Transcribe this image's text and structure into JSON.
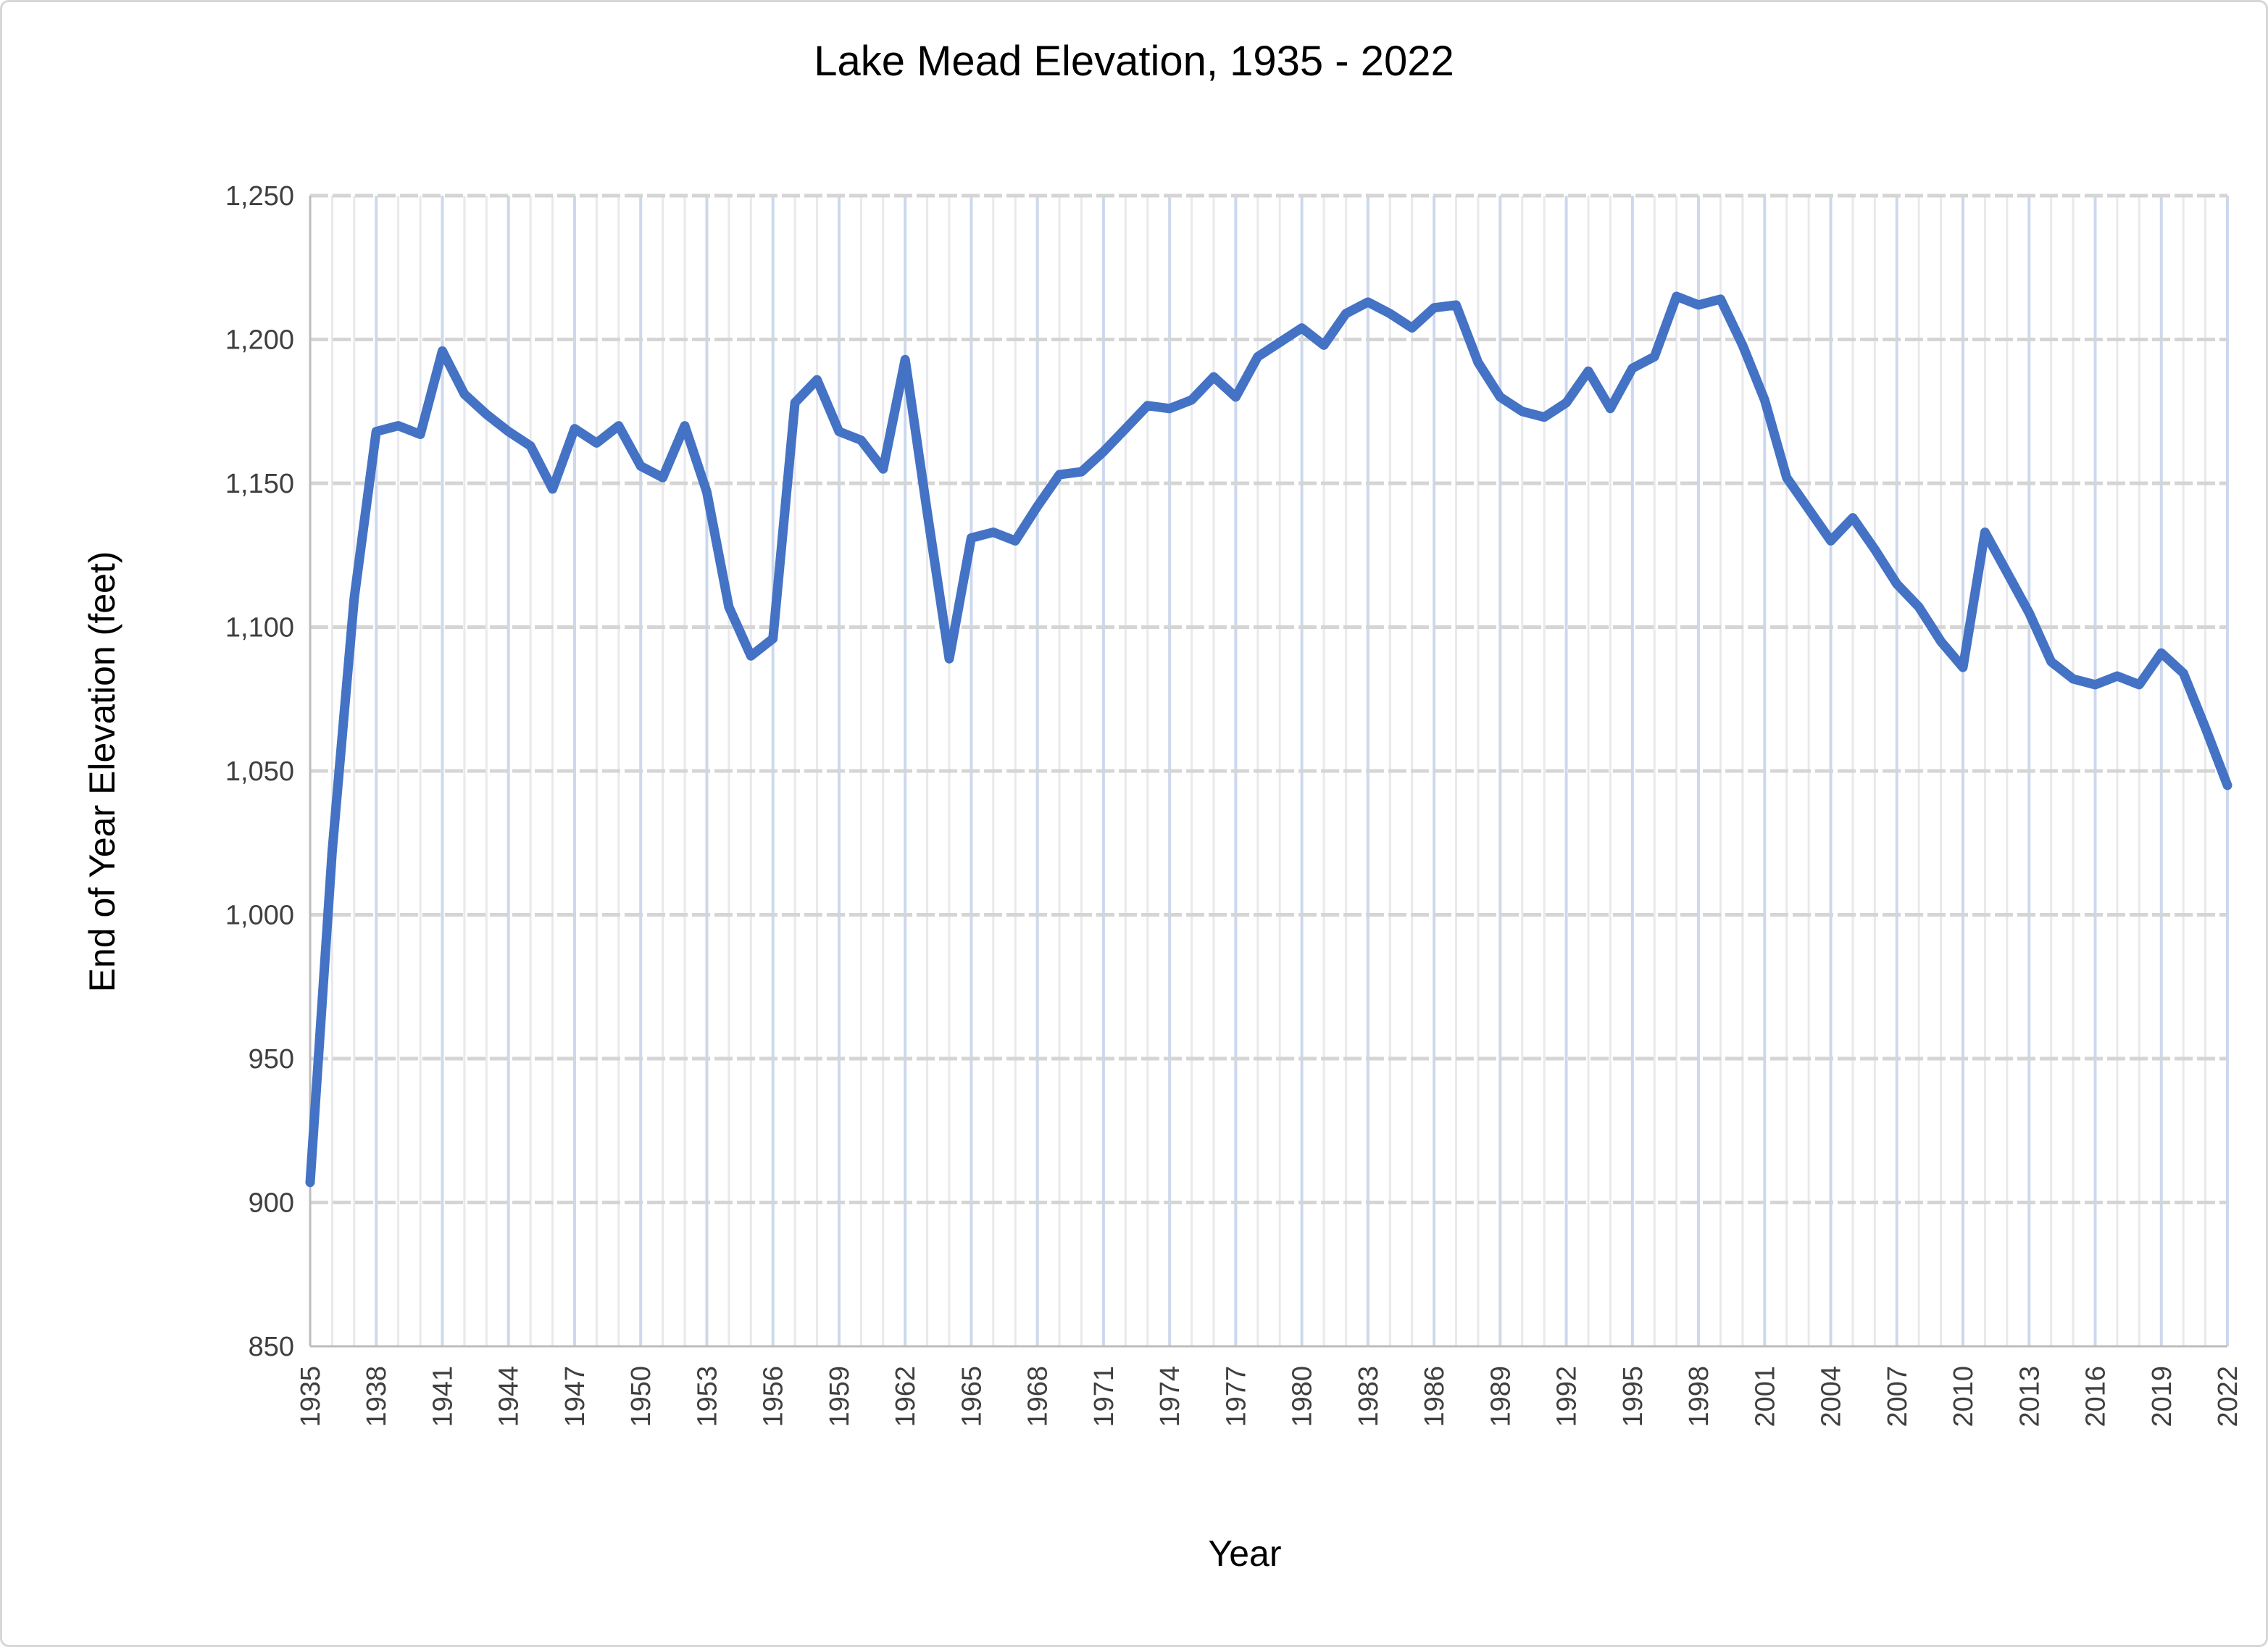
{
  "window": {
    "background": "#ffffff",
    "border_color": "#d7d7d7"
  },
  "chart": {
    "title": "Lake Mead Elevation, 1935 - 2022",
    "xlabel": "Year",
    "ylabel": "End of Year Elevation (feet)"
  },
  "chart_data": {
    "type": "line",
    "title": "Lake Mead Elevation, 1935 - 2022",
    "xlabel": "Year",
    "ylabel": "End of Year Elevation (feet)",
    "xlim": [
      1935,
      2022
    ],
    "ylim": [
      850,
      1250
    ],
    "y_tick_step": 50,
    "y_tick_labels": [
      "850",
      "900",
      "950",
      "1,000",
      "1,050",
      "1,100",
      "1,150",
      "1,200",
      "1,250"
    ],
    "x_tick_labels": [
      "1935",
      "1938",
      "1941",
      "1944",
      "1947",
      "1950",
      "1953",
      "1956",
      "1959",
      "1962",
      "1965",
      "1968",
      "1971",
      "1974",
      "1977",
      "1980",
      "1983",
      "1986",
      "1989",
      "1992",
      "1995",
      "1998",
      "2001",
      "2004",
      "2007",
      "2010",
      "2013",
      "2016",
      "2019",
      "2022"
    ],
    "x_tick_interval_years": 3,
    "grid": {
      "horizontal_color": "#d5d5d5",
      "horizontal_dashed": true,
      "vertical_minor_color": "#e9e9ed",
      "vertical_major_color": "#cdd8ec",
      "axis_line_color": "#bdbdbd",
      "legend": "none"
    },
    "line_color": "#4472c4",
    "tick_text_color": "#3f3f3f",
    "series_name": "End of Year Elevation",
    "years": [
      1935,
      1936,
      1937,
      1938,
      1939,
      1940,
      1941,
      1942,
      1943,
      1944,
      1945,
      1946,
      1947,
      1948,
      1949,
      1950,
      1951,
      1952,
      1953,
      1954,
      1955,
      1956,
      1957,
      1958,
      1959,
      1960,
      1961,
      1962,
      1963,
      1964,
      1965,
      1966,
      1967,
      1968,
      1969,
      1970,
      1971,
      1972,
      1973,
      1974,
      1975,
      1976,
      1977,
      1978,
      1979,
      1980,
      1981,
      1982,
      1983,
      1984,
      1985,
      1986,
      1987,
      1988,
      1989,
      1990,
      1991,
      1992,
      1993,
      1994,
      1995,
      1996,
      1997,
      1998,
      1999,
      2000,
      2001,
      2002,
      2003,
      2004,
      2005,
      2006,
      2007,
      2008,
      2009,
      2010,
      2011,
      2012,
      2013,
      2014,
      2015,
      2016,
      2017,
      2018,
      2019,
      2020,
      2021,
      2022
    ],
    "values": [
      907,
      1022,
      1110,
      1168,
      1170,
      1167,
      1196,
      1181,
      1174,
      1168,
      1163,
      1148,
      1169,
      1164,
      1170,
      1156,
      1152,
      1170,
      1147,
      1107,
      1090,
      1096,
      1178,
      1186,
      1168,
      1165,
      1155,
      1193,
      1140,
      1089,
      1131,
      1133,
      1130,
      1142,
      1153,
      1154,
      1161,
      1169,
      1177,
      1176,
      1179,
      1187,
      1180,
      1194,
      1199,
      1204,
      1198,
      1209,
      1213,
      1209,
      1204,
      1211,
      1212,
      1192,
      1180,
      1175,
      1173,
      1178,
      1189,
      1176,
      1190,
      1194,
      1215,
      1212,
      1214,
      1198,
      1179,
      1152,
      1141,
      1130,
      1138,
      1127,
      1115,
      1107,
      1095,
      1086,
      1133,
      1119,
      1105,
      1088,
      1082,
      1080,
      1083,
      1080,
      1091,
      1084,
      1065,
      1045
    ]
  }
}
